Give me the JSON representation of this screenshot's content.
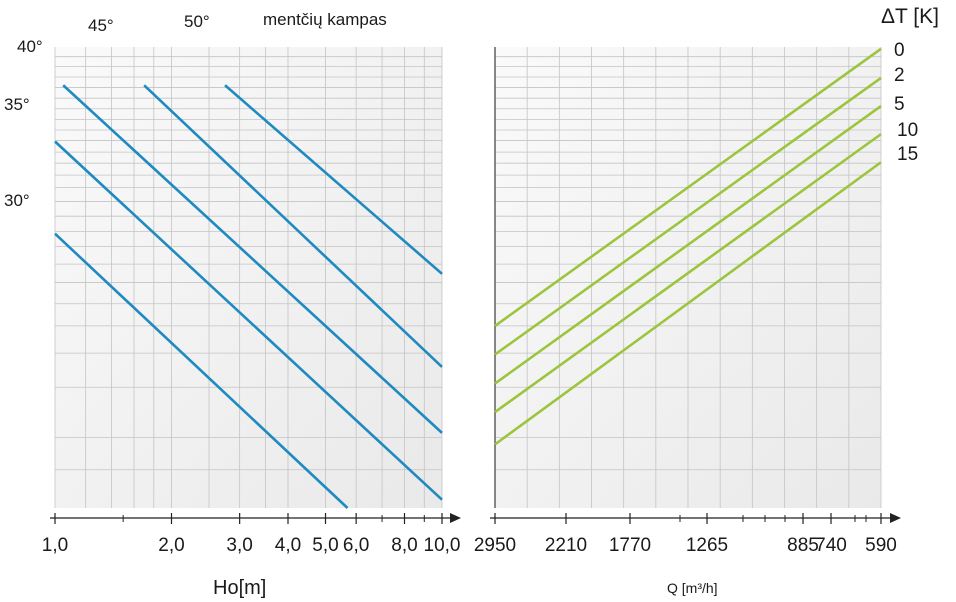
{
  "chart_data": [
    {
      "type": "line",
      "xlabel": "Ho[m]",
      "x_scale": "log",
      "x_ticks": [
        "1,0",
        "2,0",
        "3,0",
        "4,0",
        "5,0",
        "6,0",
        "8,0",
        "10,0"
      ],
      "xlim": [
        1.0,
        10.0
      ],
      "angle_labels": [
        "40°",
        "35°",
        "30°"
      ],
      "header_labels": [
        "45°",
        "50°",
        "mentčių kampas"
      ],
      "color": "#1f8ac0",
      "series": [
        {
          "angle_deg": 30,
          "points": [
            [
              1.0,
              0.595
            ],
            [
              5.7,
              0.0
            ]
          ]
        },
        {
          "angle_deg": 35,
          "points": [
            [
              1.0,
              0.795
            ],
            [
              10.0,
              0.018
            ]
          ]
        },
        {
          "angle_deg": 40,
          "points": [
            [
              1.05,
              0.917
            ],
            [
              10.0,
              0.163
            ]
          ]
        },
        {
          "angle_deg": 45,
          "points": [
            [
              1.7,
              0.917
            ],
            [
              10.0,
              0.306
            ]
          ]
        },
        {
          "angle_deg": 50,
          "points": [
            [
              2.75,
              0.917
            ],
            [
              10.0,
              0.508
            ]
          ]
        }
      ]
    },
    {
      "type": "line",
      "xlabel": "Q [m³/h]",
      "x_ticks": [
        "2950",
        "2210",
        "1770",
        "1265",
        "885",
        "740",
        "590"
      ],
      "legend_title": "ΔT [K]",
      "legend": [
        "0",
        "2",
        "5",
        "10",
        "15"
      ],
      "color": "#9bc53d",
      "series": [
        {
          "name": "0",
          "points": [
            [
              2950,
              0.395
            ],
            [
              590,
              0.996
            ]
          ]
        },
        {
          "name": "2",
          "points": [
            [
              2950,
              0.333
            ],
            [
              590,
              0.933
            ]
          ]
        },
        {
          "name": "5",
          "points": [
            [
              2950,
              0.27
            ],
            [
              590,
              0.872
            ]
          ]
        },
        {
          "name": "10",
          "points": [
            [
              2950,
              0.208
            ],
            [
              590,
              0.811
            ]
          ]
        },
        {
          "name": "15",
          "points": [
            [
              2950,
              0.138
            ],
            [
              590,
              0.75
            ]
          ]
        }
      ]
    }
  ]
}
